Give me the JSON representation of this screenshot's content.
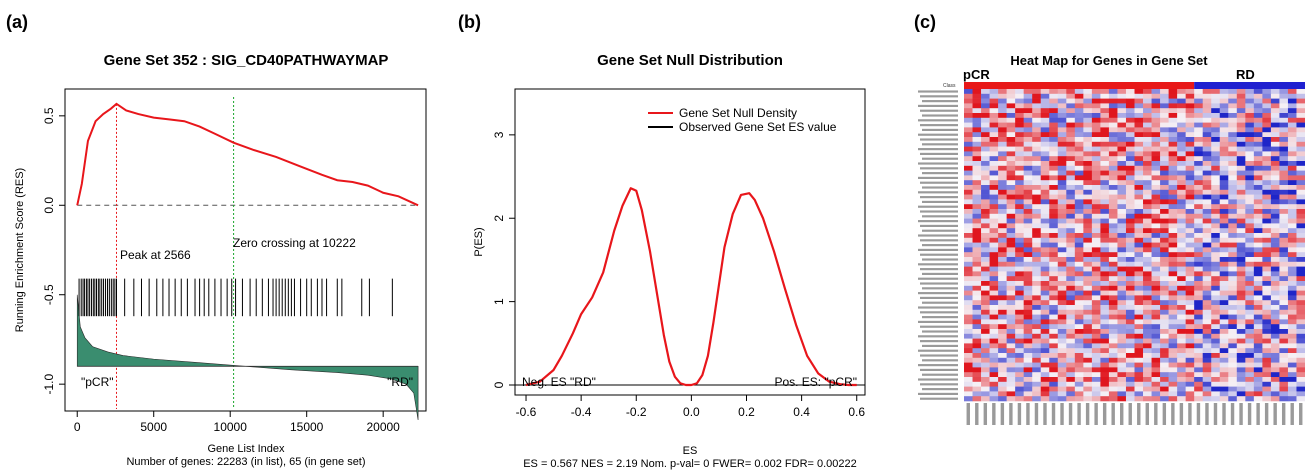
{
  "panels": {
    "a": {
      "letter": "(a)",
      "title": "Gene Set  352 : SIG_CD40PATHWAYMAP",
      "ylabel": "Running Enrichment Score (RES)",
      "xlabel": "Gene List Index",
      "subtitle": "Number of genes: 22283 (in list), 65 (in gene set)",
      "annotations": {
        "peak": "Peak at 2566",
        "zero_cross": "Zero crossing at 10222",
        "left": "\"pCR\"",
        "right": "\"RD\""
      },
      "x_ticks": [
        "0",
        "5000",
        "10000",
        "15000",
        "20000"
      ],
      "y_ticks": [
        "-1.0",
        "-0.5",
        "0.0",
        "0.5"
      ]
    },
    "b": {
      "letter": "(b)",
      "title": "Gene Set Null Distribution",
      "ylabel": "P(ES)",
      "xlabel": "ES",
      "subtitle": "ES = 0.567  NES = 2.19 Nom. p-val= 0 FWER= 0.002 FDR= 0.00222",
      "legend": [
        "Gene Set Null Density",
        "Observed Gene Set ES value"
      ],
      "annotations": {
        "left": "Neg. ES \"RD\"",
        "right": "Pos. ES: \"pCR\""
      },
      "x_ticks": [
        "-0.6",
        "-0.4",
        "-0.2",
        "0.0",
        "0.2",
        "0.4",
        "0.6"
      ],
      "y_ticks": [
        "0",
        "1",
        "2",
        "3"
      ]
    },
    "c": {
      "letter": "(c)",
      "title": "Heat Map for Genes in Gene Set",
      "groups": [
        "pCR",
        "RD"
      ],
      "class_label": "Class"
    }
  },
  "colors": {
    "res_line": "#e8161b",
    "peak_line": "#e8161b",
    "zero_line": "#1aa52c",
    "hits": "#000000",
    "ranked": "#3a8d6f",
    "density": "#e8161b",
    "heat_red": "#e0161e",
    "heat_blue": "#1e25c8",
    "heat_white": "#f5f0f5",
    "class_pcr": "#e81818",
    "class_rd": "#2020d0"
  },
  "chart_data": [
    {
      "type": "line",
      "title": "Gene Set  352 : SIG_CD40PATHWAYMAP",
      "xlabel": "Gene List Index",
      "ylabel": "Running Enrichment Score (RES)",
      "xlim": [
        -800,
        22800
      ],
      "ylim": [
        -1.15,
        0.65
      ],
      "series": [
        {
          "x": [
            0,
            300,
            700,
            1200,
            1700,
            2200,
            2566,
            3200,
            4000,
            5000,
            6000,
            7000,
            8000,
            9000,
            10222,
            11500,
            13000,
            14500,
            16000,
            17000,
            18000,
            19000,
            20000,
            21000,
            22283
          ],
          "values": [
            0.0,
            0.12,
            0.36,
            0.47,
            0.51,
            0.54,
            0.567,
            0.53,
            0.51,
            0.49,
            0.48,
            0.47,
            0.44,
            0.4,
            0.35,
            0.31,
            0.27,
            0.22,
            0.17,
            0.14,
            0.13,
            0.11,
            0.07,
            0.05,
            0.0
          ]
        }
      ],
      "peak_x": 2566,
      "zero_crossing_x": 10222,
      "hits": [
        120,
        260,
        380,
        480,
        600,
        700,
        810,
        930,
        1050,
        1150,
        1260,
        1380,
        1480,
        1600,
        1720,
        1850,
        1980,
        2100,
        2230,
        2350,
        2460,
        2566,
        3100,
        3700,
        4200,
        4700,
        5200,
        5600,
        6000,
        6400,
        6800,
        7200,
        7700,
        8000,
        8300,
        8600,
        9000,
        9400,
        9800,
        10100,
        10350,
        10800,
        11300,
        11700,
        12100,
        12500,
        12800,
        13000,
        13200,
        13400,
        13600,
        13800,
        14000,
        14200,
        14600,
        15000,
        15300,
        15700,
        16000,
        16300,
        17000,
        17300,
        18600,
        19100,
        20600
      ],
      "ranked_metric": {
        "x": [
          0,
          200,
          500,
          1000,
          2000,
          3000,
          5000,
          8000,
          11000,
          14000,
          17000,
          19000,
          20500,
          21500,
          22000,
          22283
        ],
        "values": [
          0.4,
          0.22,
          0.16,
          0.11,
          0.08,
          0.06,
          0.04,
          0.02,
          0.0,
          -0.02,
          -0.035,
          -0.05,
          -0.07,
          -0.1,
          -0.15,
          -0.3
        ]
      }
    },
    {
      "type": "line",
      "title": "Gene Set Null Distribution",
      "xlabel": "ES",
      "ylabel": "P(ES)",
      "xlim": [
        -0.64,
        0.63
      ],
      "ylim": [
        -0.12,
        3.55
      ],
      "series": [
        {
          "name": "Gene Set Null Density",
          "x": [
            -0.6,
            -0.55,
            -0.5,
            -0.47,
            -0.43,
            -0.4,
            -0.36,
            -0.32,
            -0.28,
            -0.25,
            -0.22,
            -0.2,
            -0.18,
            -0.15,
            -0.12,
            -0.1,
            -0.08,
            -0.06,
            -0.04,
            -0.02,
            0.0,
            0.02,
            0.04,
            0.06,
            0.08,
            0.1,
            0.12,
            0.15,
            0.18,
            0.21,
            0.23,
            0.26,
            0.3,
            0.34,
            0.38,
            0.42,
            0.46,
            0.5,
            0.54,
            0.57,
            0.6
          ],
          "values": [
            0.0,
            0.04,
            0.18,
            0.35,
            0.62,
            0.85,
            1.05,
            1.35,
            1.85,
            2.15,
            2.36,
            2.33,
            2.1,
            1.6,
            1.0,
            0.6,
            0.28,
            0.1,
            0.02,
            0.0,
            0.0,
            0.02,
            0.12,
            0.35,
            0.75,
            1.2,
            1.65,
            2.05,
            2.28,
            2.3,
            2.22,
            2.0,
            1.6,
            1.15,
            0.72,
            0.35,
            0.14,
            0.04,
            0.01,
            0.0,
            0.0
          ]
        }
      ],
      "legend": [
        "Gene Set Null Density",
        "Observed Gene Set ES value"
      ],
      "legend_position": "top-right"
    },
    {
      "type": "heatmap",
      "title": "Heat Map for Genes in Gene Set",
      "groups": [
        "pCR",
        "RD"
      ],
      "rows": 65,
      "columns": 40
    }
  ]
}
